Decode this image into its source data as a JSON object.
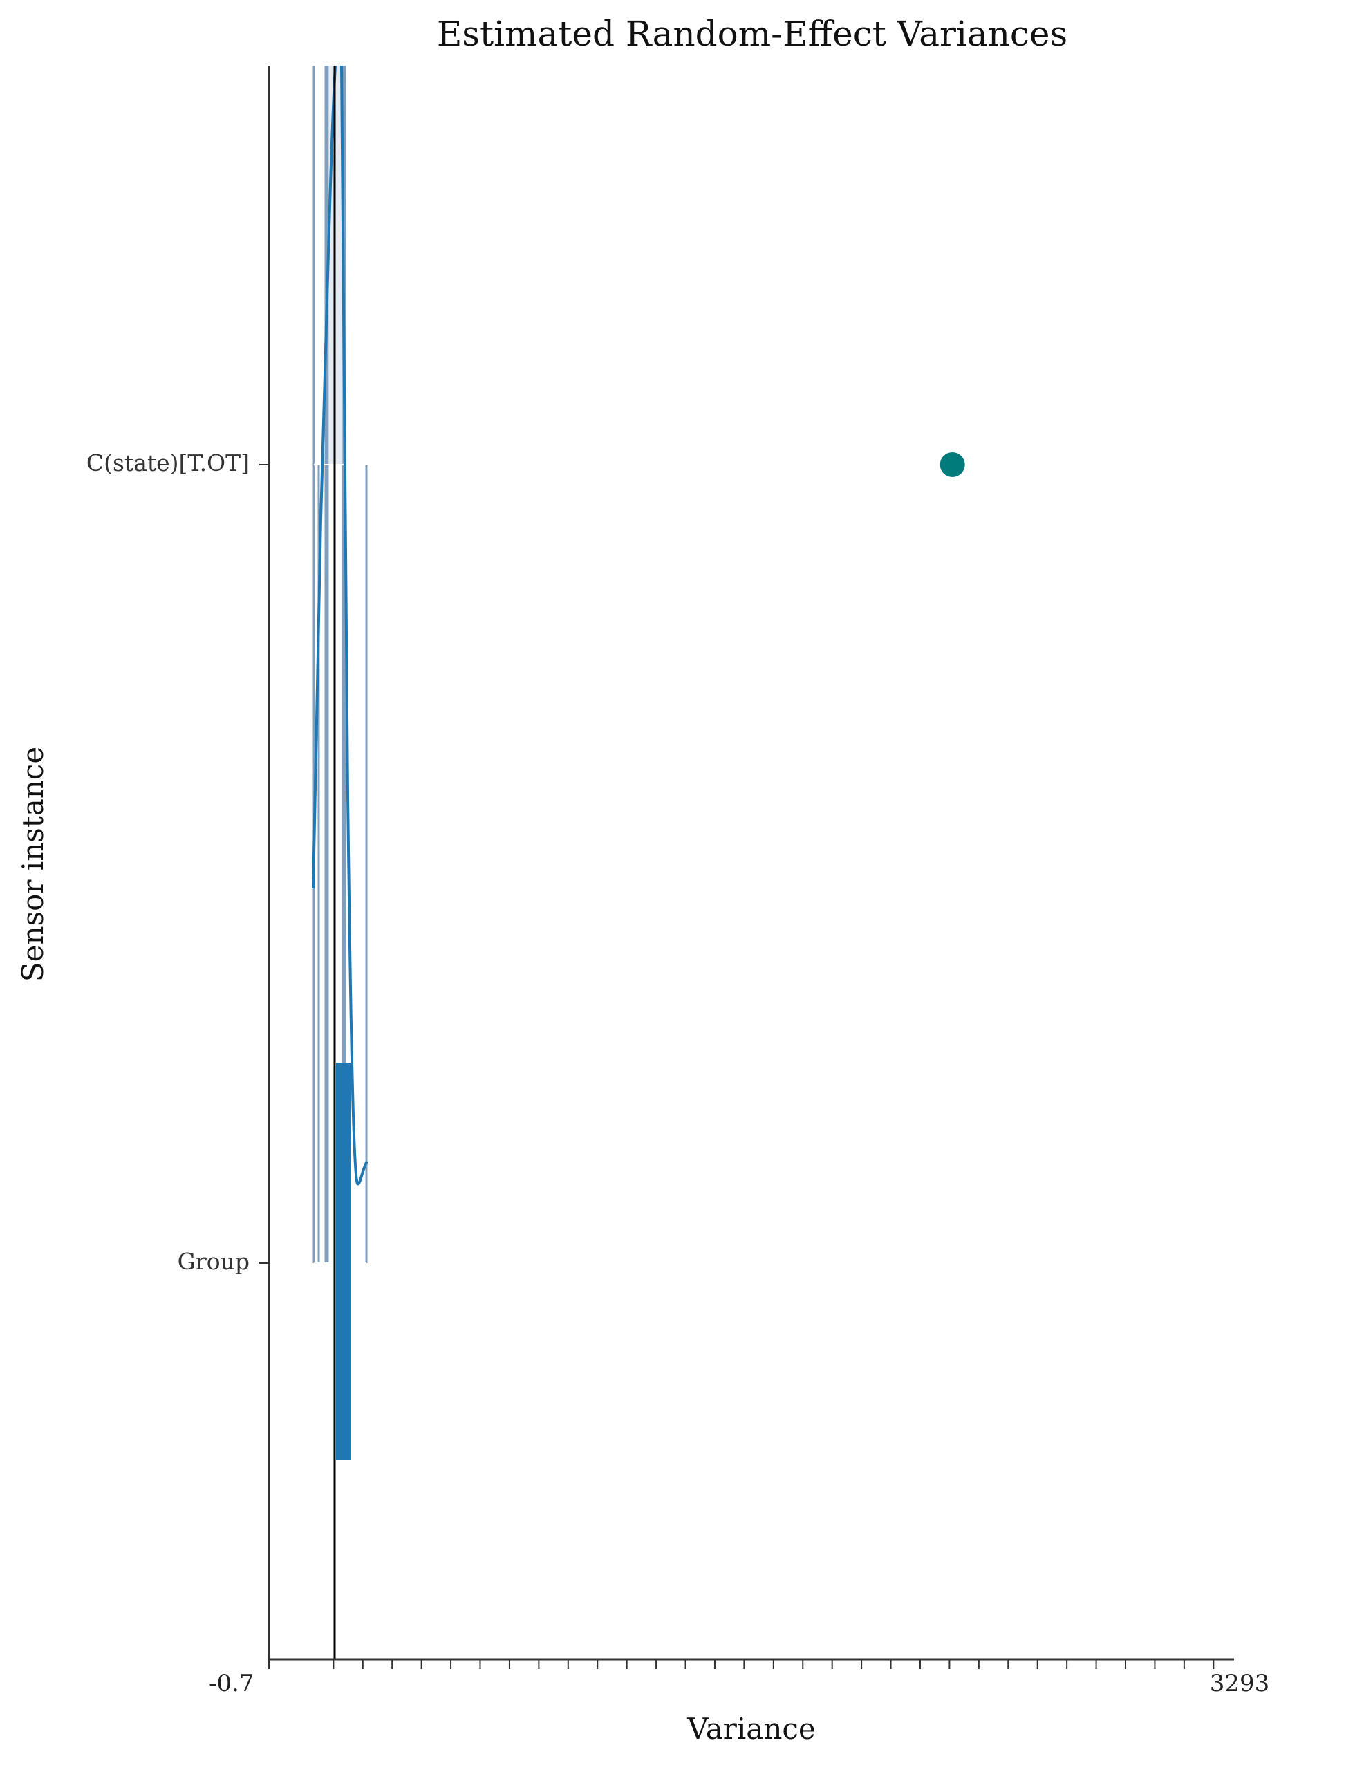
{
  "chart_data": {
    "type": "scatter",
    "title": "Estimated Random-Effect Variances",
    "xlabel": "Variance",
    "ylabel": "Sensor instance",
    "categories": [
      "Group",
      "C(state)[T.OT]"
    ],
    "points": [
      {
        "category": "C(state)[T.OT]",
        "x": 21.1
      }
    ],
    "reference_line_x": 0,
    "first_tick_label": "-0.7",
    "last_tick_label": "3293",
    "tick_values": [
      -2.2,
      0,
      1,
      2,
      3,
      4,
      5,
      6,
      7,
      8,
      9,
      10,
      11,
      12,
      13,
      14,
      15,
      16,
      17,
      18,
      19,
      20,
      21,
      22,
      23,
      24,
      25,
      26,
      27,
      28,
      29,
      30
    ],
    "xlim": [
      -2.2,
      30.7
    ],
    "grid": false,
    "legend": "none",
    "colors": {
      "point": "#007b7b",
      "bar": "#1f77b4",
      "curve": "#1f77b4",
      "rug": "#7f9fbf",
      "axis": "#333333"
    }
  }
}
